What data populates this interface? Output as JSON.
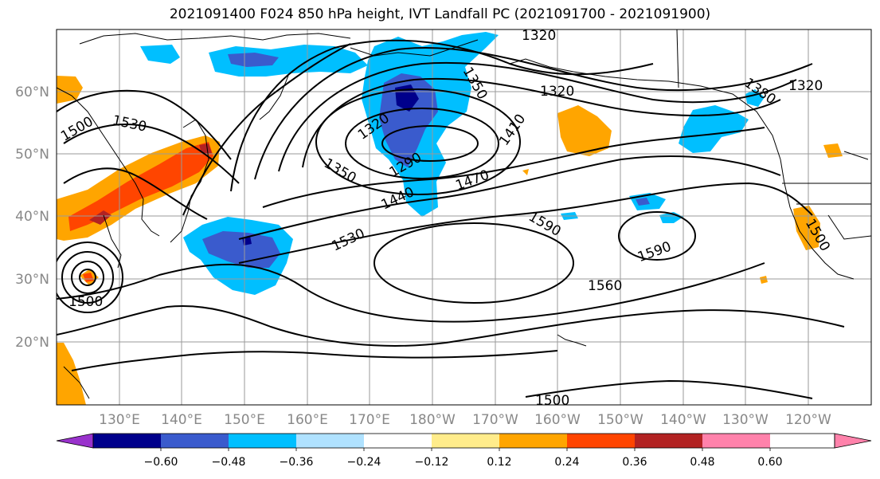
{
  "title": "2021091400 F024 850 hPa height, IVT Landfall PC (2021091700 - 2021091900)",
  "lat_labels": [
    "60°N",
    "50°N",
    "40°N",
    "30°N",
    "20°N"
  ],
  "lon_labels": [
    "130°E",
    "140°E",
    "150°E",
    "160°E",
    "170°E",
    "180°W",
    "170°W",
    "160°W",
    "150°W",
    "140°W",
    "130°W",
    "120°W"
  ],
  "contour_labels": [
    "1320",
    "1350",
    "1320",
    "1380",
    "1320",
    "1500",
    "1530",
    "1320",
    "1290",
    "1350",
    "1410",
    "1440",
    "1470",
    "1530",
    "1590",
    "1590",
    "1560",
    "1500",
    "1500",
    "1500"
  ],
  "colorbar": {
    "labels": [
      "−0.60",
      "−0.48",
      "−0.36",
      "−0.24",
      "−0.12",
      "0.12",
      "0.24",
      "0.36",
      "0.48",
      "0.60"
    ],
    "colors": [
      "#9932CC",
      "#00008B",
      "#3A5BCD",
      "#00BFFF",
      "#B0E2FF",
      "#FFFFFF",
      "#FFEC8B",
      "#FFA500",
      "#FF4500",
      "#B22222",
      "#FF82AB"
    ]
  }
}
